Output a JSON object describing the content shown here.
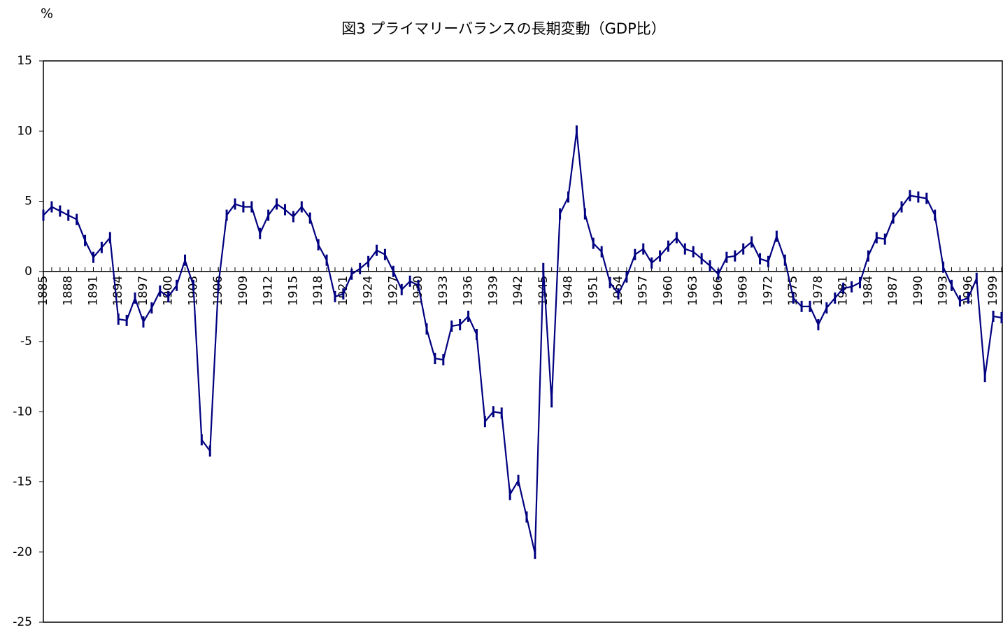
{
  "chart_data": {
    "type": "line",
    "title": "図3 プライマリーバランスの長期変動（GDP比）",
    "y_label": "%",
    "x": [
      1885,
      1886,
      1887,
      1888,
      1889,
      1890,
      1891,
      1892,
      1893,
      1894,
      1895,
      1896,
      1897,
      1898,
      1899,
      1900,
      1901,
      1902,
      1903,
      1904,
      1905,
      1906,
      1907,
      1908,
      1909,
      1910,
      1911,
      1912,
      1913,
      1914,
      1915,
      1916,
      1917,
      1918,
      1919,
      1920,
      1921,
      1922,
      1923,
      1924,
      1925,
      1926,
      1927,
      1928,
      1929,
      1930,
      1931,
      1932,
      1933,
      1934,
      1935,
      1936,
      1937,
      1938,
      1939,
      1940,
      1941,
      1942,
      1943,
      1944,
      1945,
      1946,
      1947,
      1948,
      1949,
      1950,
      1951,
      1952,
      1953,
      1954,
      1955,
      1956,
      1957,
      1958,
      1959,
      1960,
      1961,
      1962,
      1963,
      1964,
      1965,
      1966,
      1967,
      1968,
      1969,
      1970,
      1971,
      1972,
      1973,
      1974,
      1975,
      1976,
      1977,
      1978,
      1979,
      1980,
      1981,
      1982,
      1983,
      1984,
      1985,
      1986,
      1987,
      1988,
      1989,
      1990,
      1991,
      1992,
      1993,
      1994,
      1995,
      1996,
      1997,
      1998,
      1999,
      2000
    ],
    "series": [
      {
        "color": "#000080",
        "values": [
          4.0,
          4.6,
          4.3,
          4.0,
          3.7,
          2.2,
          1.0,
          1.7,
          2.4,
          -3.4,
          -3.5,
          -1.9,
          -3.6,
          -2.6,
          -1.4,
          -1.8,
          -1.0,
          0.8,
          -1.0,
          -12.0,
          -12.8,
          -1.0,
          4.0,
          4.8,
          4.6,
          4.6,
          2.7,
          4.0,
          4.8,
          4.4,
          3.9,
          4.6,
          3.8,
          1.9,
          0.8,
          -1.8,
          -1.6,
          -0.2,
          0.2,
          0.7,
          1.5,
          1.2,
          0.0,
          -1.3,
          -0.7,
          -1.0,
          -4.1,
          -6.2,
          -6.3,
          -3.9,
          -3.8,
          -3.2,
          -4.5,
          -10.7,
          -10.0,
          -10.1,
          -15.9,
          -14.9,
          -17.5,
          -20.1,
          0.2,
          -9.3,
          4.1,
          5.3,
          10.0,
          4.1,
          2.0,
          1.4,
          -0.8,
          -1.6,
          -0.4,
          1.2,
          1.6,
          0.6,
          1.1,
          1.8,
          2.4,
          1.6,
          1.4,
          0.9,
          0.4,
          -0.2,
          1.0,
          1.1,
          1.6,
          2.1,
          0.9,
          0.7,
          2.5,
          0.8,
          -1.9,
          -2.5,
          -2.5,
          -3.8,
          -2.6,
          -1.9,
          -1.2,
          -1.1,
          -0.8,
          1.1,
          2.4,
          2.3,
          3.8,
          4.6,
          5.4,
          5.3,
          5.2,
          4.0,
          0.3,
          -1.0,
          -2.1,
          -1.9,
          -0.5,
          -7.5,
          -3.2,
          -3.3
        ]
      }
    ],
    "xlim": [
      1885,
      2000
    ],
    "xticks": [
      1885,
      1888,
      1891,
      1894,
      1897,
      1900,
      1903,
      1906,
      1909,
      1912,
      1915,
      1918,
      1921,
      1924,
      1927,
      1930,
      1933,
      1936,
      1939,
      1942,
      1945,
      1948,
      1951,
      1954,
      1957,
      1960,
      1963,
      1966,
      1969,
      1972,
      1975,
      1978,
      1981,
      1984,
      1987,
      1990,
      1993,
      1996,
      1999
    ],
    "ylim": [
      -25,
      15
    ],
    "yticks": [
      -25,
      -20,
      -15,
      -10,
      -5,
      0,
      5,
      10,
      15
    ]
  }
}
